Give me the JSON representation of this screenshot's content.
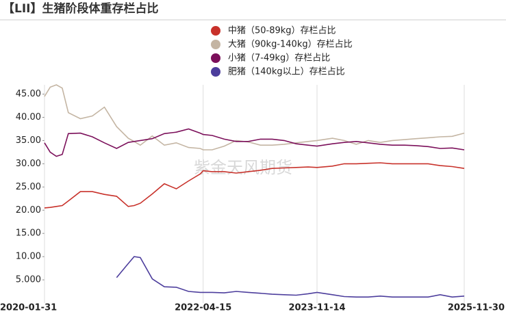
{
  "chart_data": {
    "type": "line",
    "title": "【LII】生猪阶段体重存栏占比",
    "watermark": "紫金天风期货",
    "x": [
      "2020-01-31",
      "2020-02-29",
      "2020-03-31",
      "2020-04-30",
      "2020-05-31",
      "2020-07-31",
      "2020-09-30",
      "2020-11-30",
      "2021-01-31",
      "2021-03-31",
      "2021-04-30",
      "2021-05-31",
      "2021-07-31",
      "2021-09-30",
      "2021-11-30",
      "2022-01-31",
      "2022-03-31",
      "2022-04-15",
      "2022-05-31",
      "2022-07-31",
      "2022-09-30",
      "2022-11-30",
      "2023-01-31",
      "2023-03-31",
      "2023-05-31",
      "2023-07-31",
      "2023-09-30",
      "2023-11-14",
      "2024-01-31",
      "2024-03-31",
      "2024-05-31",
      "2024-07-31",
      "2024-09-30",
      "2024-11-30",
      "2025-01-31",
      "2025-03-31",
      "2025-05-31",
      "2025-07-31",
      "2025-09-30",
      "2025-11-30"
    ],
    "series": [
      {
        "name": "中猪（50-89kg）存栏占比",
        "color": "#c8312a",
        "values": [
          20.5,
          20.6,
          20.8,
          21,
          22,
          24,
          24,
          23.4,
          23,
          20.8,
          21,
          21.5,
          23.5,
          25.7,
          24.6,
          26.3,
          27.8,
          28.5,
          28.3,
          28.3,
          28,
          28.3,
          28.6,
          29,
          29.1,
          29.2,
          29.3,
          29.2,
          29.5,
          30,
          30,
          30.1,
          30.2,
          30,
          30,
          30,
          30,
          29.6,
          29.4,
          29
        ]
      },
      {
        "name": "大猪（90kg-140kg）存栏占比",
        "color": "#c4b5a3",
        "values": [
          44.5,
          46.5,
          47,
          46.3,
          41,
          39.7,
          40.3,
          42.2,
          38,
          35.5,
          34.8,
          34,
          36,
          34,
          34.5,
          33.5,
          33.3,
          33,
          33,
          33.8,
          35,
          34.7,
          34,
          34,
          34.2,
          34.5,
          34.8,
          35,
          35.5,
          35,
          34.2,
          35,
          34.6,
          35,
          35.2,
          35.4,
          35.6,
          35.8,
          35.9,
          36.6
        ]
      },
      {
        "name": "小猪（7-49kg）存栏占比",
        "color": "#7b0f5a",
        "values": [
          34.5,
          32.5,
          31.6,
          32,
          36.5,
          36.6,
          35.8,
          34.5,
          33.3,
          34.6,
          34.8,
          35,
          35.4,
          36.5,
          36.8,
          37.5,
          36.6,
          36.3,
          36.1,
          35.3,
          34.8,
          34.8,
          35.3,
          35.3,
          35,
          34.3,
          34,
          33.8,
          34.3,
          34.6,
          34.8,
          34.5,
          34.2,
          34,
          34,
          33.9,
          33.7,
          33.3,
          33.4,
          33
        ]
      },
      {
        "name": "肥猪（140kg以上）存栏占比",
        "color": "#4c3d9c",
        "values": [
          null,
          null,
          null,
          null,
          null,
          null,
          null,
          null,
          5.5,
          8.5,
          10,
          9.8,
          5.2,
          3.5,
          3.4,
          2.5,
          2.3,
          2.3,
          2.3,
          2.2,
          2.5,
          2.3,
          2.1,
          1.9,
          1.8,
          1.7,
          2,
          2.3,
          1.8,
          1.4,
          1.3,
          1.3,
          1.5,
          1.3,
          1.3,
          1.3,
          1.3,
          1.8,
          1.3,
          1.5
        ]
      }
    ],
    "xlim": [
      "2020-01-31",
      "2025-11-30"
    ],
    "xticks": [
      "2020-01-31",
      "2022-04-15",
      "2023-11-14",
      "2025-11-30"
    ],
    "ylim": [
      0,
      47
    ],
    "yticks": [
      {
        "value": 5,
        "label": "5.000"
      },
      {
        "value": 10,
        "label": "10.00"
      },
      {
        "value": 15,
        "label": "15.00"
      },
      {
        "value": 20,
        "label": "20.00"
      },
      {
        "value": 25,
        "label": "25.00"
      },
      {
        "value": 30,
        "label": "30.00"
      },
      {
        "value": 35,
        "label": "35.00"
      },
      {
        "value": 40,
        "label": "40.00"
      },
      {
        "value": 45,
        "label": "45.00"
      }
    ],
    "grid": "x"
  }
}
